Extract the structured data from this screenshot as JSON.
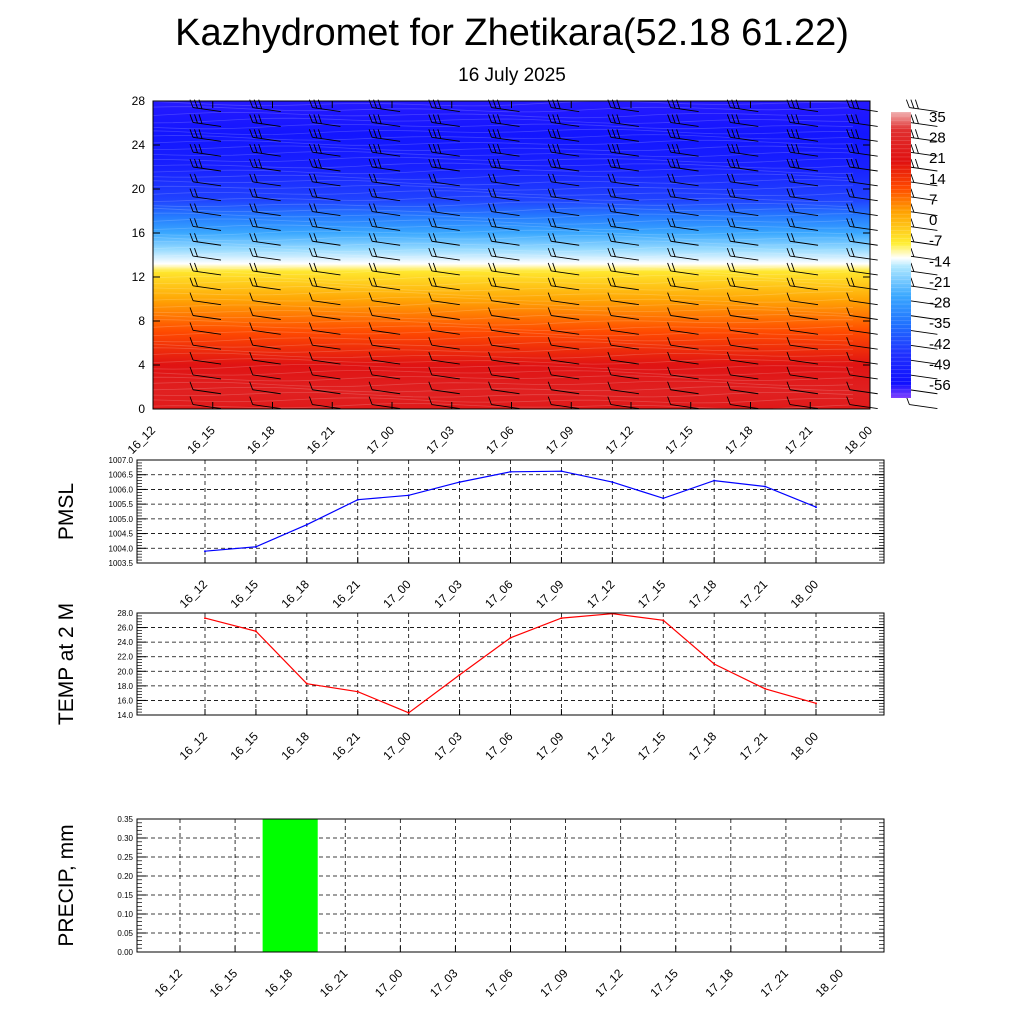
{
  "header": {
    "title": "Kazhydromet for Zhetikara(52.18 61.22)",
    "subtitle": "16 July 2025"
  },
  "colors": {
    "pmsl_line": "#0000ff",
    "temp_line": "#ff0000",
    "precip_bar": "#00ff00",
    "grid": "#000000"
  },
  "chart_data": [
    {
      "type": "heatmap",
      "id": "temperature-profile",
      "x_ticks": [
        "16_12",
        "16_15",
        "16_18",
        "16_21",
        "17_00",
        "17_03",
        "17_06",
        "17_09",
        "17_12",
        "17_15",
        "17_18",
        "17_21",
        "18_00"
      ],
      "y_ticks": [
        "0",
        "4",
        "8",
        "12",
        "16",
        "20",
        "24",
        "28"
      ],
      "ylim": [
        0,
        28
      ],
      "colorbar": {
        "labels": [
          "35",
          "28",
          "21",
          "14",
          "7",
          "0",
          "-7",
          "-14",
          "-21",
          "-28",
          "-35",
          "-42",
          "-49",
          "-56"
        ],
        "range": [
          -60,
          38
        ],
        "stops": [
          {
            "value": 38,
            "color": "#f0b0b0"
          },
          {
            "value": 32,
            "color": "#e03030"
          },
          {
            "value": 21,
            "color": "#e01010"
          },
          {
            "value": 12,
            "color": "#ff4a00"
          },
          {
            "value": 4,
            "color": "#ffa000"
          },
          {
            "value": -7,
            "color": "#ffee33"
          },
          {
            "value": -12,
            "color": "#ffffff"
          },
          {
            "value": -15,
            "color": "#b0e8ff"
          },
          {
            "value": -25,
            "color": "#3aa8ff"
          },
          {
            "value": -35,
            "color": "#2070ff"
          },
          {
            "value": -45,
            "color": "#2030ff"
          },
          {
            "value": -55,
            "color": "#1010ff"
          },
          {
            "value": -60,
            "color": "#8040ff"
          }
        ]
      },
      "profile": [
        {
          "height": 0,
          "value": 24
        },
        {
          "height": 1.5,
          "value": 27
        },
        {
          "height": 4,
          "value": 22
        },
        {
          "height": 7,
          "value": 12
        },
        {
          "height": 10,
          "value": 3
        },
        {
          "height": 12.5,
          "value": -6
        },
        {
          "height": 13.2,
          "value": -12
        },
        {
          "height": 14.5,
          "value": -17
        },
        {
          "height": 16,
          "value": -25
        },
        {
          "height": 17.5,
          "value": -33
        },
        {
          "height": 19,
          "value": -42
        },
        {
          "height": 22,
          "value": -50
        },
        {
          "height": 25,
          "value": -53
        },
        {
          "height": 28,
          "value": -56
        }
      ]
    },
    {
      "type": "line",
      "id": "pmsl",
      "ylabel": "PMSL",
      "x": [
        "16_12",
        "16_15",
        "16_18",
        "16_21",
        "17_00",
        "17_03",
        "17_06",
        "17_09",
        "17_12",
        "17_15",
        "17_18",
        "17_21",
        "18_00"
      ],
      "values": [
        1003.9,
        1004.05,
        1004.8,
        1005.65,
        1005.8,
        1006.25,
        1006.6,
        1006.62,
        1006.25,
        1005.7,
        1006.3,
        1006.1,
        1005.4
      ],
      "ylim": [
        1003.5,
        1007.0
      ],
      "y_ticks": [
        "1003.5",
        "1004.0",
        "1004.5",
        "1005.0",
        "1005.5",
        "1006.0",
        "1006.5",
        "1007.0"
      ],
      "grid": true
    },
    {
      "type": "line",
      "id": "temp-2m",
      "ylabel": "TEMP at 2 M",
      "x": [
        "16_12",
        "16_15",
        "16_18",
        "16_21",
        "17_00",
        "17_03",
        "17_06",
        "17_09",
        "17_12",
        "17_15",
        "17_18",
        "17_21",
        "18_00"
      ],
      "values": [
        27.3,
        25.5,
        18.3,
        17.2,
        14.3,
        19.5,
        24.6,
        27.3,
        27.9,
        27.0,
        21.0,
        17.6,
        15.6
      ],
      "ylim": [
        14.0,
        28.0
      ],
      "y_ticks": [
        "14.0",
        "16.0",
        "18.0",
        "20.0",
        "22.0",
        "24.0",
        "26.0",
        "28.0"
      ],
      "grid": true
    },
    {
      "type": "bar",
      "id": "precip",
      "ylabel": "PRECIP, mm",
      "x": [
        "16_12",
        "16_15",
        "16_18",
        "16_21",
        "17_00",
        "17_03",
        "17_06",
        "17_09",
        "17_12",
        "17_15",
        "17_18",
        "17_21",
        "18_00"
      ],
      "values": [
        0,
        0,
        0.35,
        0,
        0,
        0,
        0,
        0,
        0,
        0,
        0,
        0,
        0
      ],
      "ylim": [
        0,
        0.35
      ],
      "y_ticks": [
        "0.00",
        "0.05",
        "0.10",
        "0.15",
        "0.20",
        "0.25",
        "0.30",
        "0.35"
      ],
      "grid": true
    }
  ]
}
